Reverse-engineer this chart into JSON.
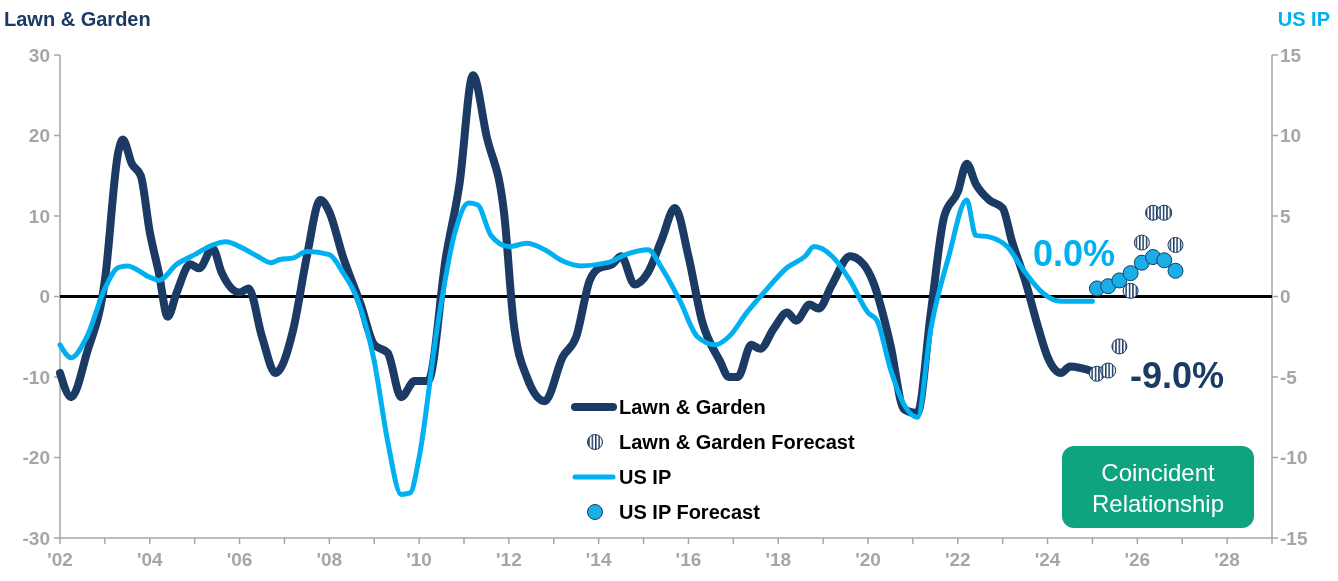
{
  "chart_data": {
    "type": "line",
    "ylabel": "Lawn & Garden",
    "y2label": "US IP",
    "xlim": [
      2002,
      2029
    ],
    "xticks": [
      {
        "value": 2002,
        "label": "'02"
      },
      {
        "value": 2003,
        "label": null
      },
      {
        "value": 2004,
        "label": "'04"
      },
      {
        "value": 2005,
        "label": null
      },
      {
        "value": 2006,
        "label": "'06"
      },
      {
        "value": 2007,
        "label": null
      },
      {
        "value": 2008,
        "label": "'08"
      },
      {
        "value": 2009,
        "label": null
      },
      {
        "value": 2010,
        "label": "'10"
      },
      {
        "value": 2011,
        "label": null
      },
      {
        "value": 2012,
        "label": "'12"
      },
      {
        "value": 2013,
        "label": null
      },
      {
        "value": 2014,
        "label": "'14"
      },
      {
        "value": 2015,
        "label": null
      },
      {
        "value": 2016,
        "label": "'16"
      },
      {
        "value": 2017,
        "label": null
      },
      {
        "value": 2018,
        "label": "'18"
      },
      {
        "value": 2019,
        "label": null
      },
      {
        "value": 2020,
        "label": "'20"
      },
      {
        "value": 2021,
        "label": null
      },
      {
        "value": 2022,
        "label": "'22"
      },
      {
        "value": 2023,
        "label": null
      },
      {
        "value": 2024,
        "label": "'24"
      },
      {
        "value": 2025,
        "label": null
      },
      {
        "value": 2026,
        "label": "'26"
      },
      {
        "value": 2027,
        "label": null
      },
      {
        "value": 2028,
        "label": "'28"
      },
      {
        "value": 2029,
        "label": null
      }
    ],
    "ylim": [
      -30,
      30
    ],
    "yticks": [
      -30,
      -20,
      -10,
      0,
      10,
      20,
      30
    ],
    "y2lim": [
      -15,
      15
    ],
    "y2ticks": [
      -15,
      -10,
      -5,
      0,
      5,
      10,
      15
    ],
    "grid": false,
    "legend": "bottom",
    "ref_lines": [
      {
        "axis": "y",
        "value": 0,
        "color": "#000000"
      }
    ],
    "annotations": [
      "0.0%",
      "-9.0%",
      "Coincident Relationship"
    ],
    "series": [
      {
        "name": "Lawn & Garden",
        "type": "line",
        "color": "#1b3a64",
        "x": [
          2002.0,
          2002.25,
          2002.6,
          2003.0,
          2003.3,
          2003.4,
          2003.6,
          2003.8,
          2004.0,
          2004.2,
          2004.4,
          2004.6,
          2004.9,
          2005.1,
          2005.4,
          2005.6,
          2006.0,
          2006.2,
          2006.5,
          2006.8,
          2007.2,
          2007.5,
          2007.8,
          2008.0,
          2008.3,
          2008.7,
          2009.0,
          2009.3,
          2009.6,
          2009.9,
          2010.2,
          2010.6,
          2010.9,
          2011.2,
          2011.5,
          2011.9,
          2012.1,
          2012.4,
          2012.8,
          2013.2,
          2013.5,
          2013.8,
          2014.0,
          2014.3,
          2014.5,
          2014.8,
          2015.1,
          2015.4,
          2015.7,
          2016.0,
          2016.3,
          2016.7,
          2016.9,
          2017.1,
          2017.4,
          2017.6,
          2017.9,
          2018.2,
          2018.4,
          2018.7,
          2018.9,
          2019.2,
          2019.6,
          2019.9,
          2020.1,
          2020.5,
          2020.8,
          2021.1,
          2021.4,
          2021.7,
          2022.0,
          2022.2,
          2022.4,
          2022.7,
          2023.0,
          2023.2,
          2023.5,
          2023.8,
          2024.0,
          2024.3,
          2024.5,
          2025.0
        ],
        "values": [
          -9.5,
          -12.5,
          -7,
          2,
          18,
          19.5,
          16.5,
          15,
          8,
          3,
          -2.5,
          0.5,
          4,
          3.5,
          6,
          3,
          0.5,
          1,
          -5,
          -9.5,
          -4,
          5,
          12,
          10.5,
          5,
          -1,
          -6,
          -7,
          -12.5,
          -10.5,
          -10.5,
          5,
          14,
          27.5,
          20,
          10,
          -3,
          -10,
          -13,
          -7.5,
          -5,
          2,
          3.5,
          4,
          5,
          1.5,
          3,
          7,
          11,
          5,
          -3,
          -8,
          -10,
          -10,
          -6,
          -6.5,
          -4,
          -2,
          -3,
          -1,
          -1.5,
          1.5,
          5,
          4,
          2,
          -6,
          -14,
          -14.5,
          -2,
          10,
          13,
          16.5,
          14,
          12,
          11,
          7,
          2,
          -4,
          -7.5,
          -9.5,
          -8.7,
          -9.3
        ]
      },
      {
        "name": "Lawn & Garden Forecast",
        "type": "scatter",
        "marker": "circle",
        "color": "#1b3a64",
        "x": [
          2025.1,
          2025.35,
          2025.6,
          2025.85,
          2026.1,
          2026.35,
          2026.6,
          2026.85
        ],
        "values": [
          -9.6,
          -9.2,
          -6.2,
          0.7,
          6.7,
          10.4,
          10.4,
          6.4
        ]
      },
      {
        "name": "US IP",
        "type": "line",
        "axis": "y2",
        "color": "#00b0f0",
        "x": [
          2002.0,
          2002.25,
          2002.6,
          2003.0,
          2003.3,
          2003.5,
          2004.0,
          2004.2,
          2004.6,
          2005.0,
          2005.4,
          2005.7,
          2006.0,
          2006.4,
          2006.7,
          2006.9,
          2007.2,
          2007.5,
          2008.0,
          2008.3,
          2008.6,
          2009.0,
          2009.3,
          2009.6,
          2009.8,
          2010.0,
          2010.4,
          2010.8,
          2011.1,
          2011.3,
          2011.6,
          2012.0,
          2012.4,
          2012.8,
          2013.2,
          2013.6,
          2014.2,
          2014.6,
          2015.1,
          2015.4,
          2015.8,
          2016.2,
          2016.6,
          2016.9,
          2017.3,
          2017.7,
          2018.2,
          2018.6,
          2018.8,
          2019.2,
          2019.6,
          2020.0,
          2020.2,
          2020.5,
          2020.8,
          2021.1,
          2021.4,
          2021.8,
          2022.2,
          2022.4,
          2022.7,
          2023.1,
          2023.5,
          2023.9,
          2024.3,
          2025.0
        ],
        "values": [
          -3,
          -3.8,
          -2.5,
          0.5,
          1.8,
          1.9,
          1.2,
          1,
          2,
          2.6,
          3.2,
          3.4,
          3.1,
          2.5,
          2.1,
          2.3,
          2.4,
          2.8,
          2.6,
          1.5,
          0,
          -4,
          -9,
          -12.3,
          -12.2,
          -10,
          -2,
          4,
          5.8,
          5.7,
          3.8,
          3.1,
          3.3,
          2.9,
          2.2,
          1.9,
          2.1,
          2.6,
          2.9,
          1.8,
          -0.2,
          -2.5,
          -3,
          -2.5,
          -1,
          0.3,
          1.8,
          2.5,
          3.1,
          2.5,
          1,
          -1,
          -1.5,
          -4.5,
          -6.7,
          -7.5,
          -2,
          2.5,
          6,
          3.8,
          3.7,
          3.1,
          1.5,
          0.2,
          -0.3,
          -0.3
        ]
      },
      {
        "name": "US IP Forecast",
        "type": "scatter",
        "axis": "y2",
        "marker": "circle",
        "color": "#1aaee8",
        "x": [
          2025.1,
          2025.35,
          2025.6,
          2025.85,
          2026.1,
          2026.35,
          2026.6,
          2026.85
        ],
        "values": [
          0.5,
          0.64,
          1.0,
          1.45,
          2.1,
          2.45,
          2.25,
          1.6
        ]
      }
    ]
  }
}
